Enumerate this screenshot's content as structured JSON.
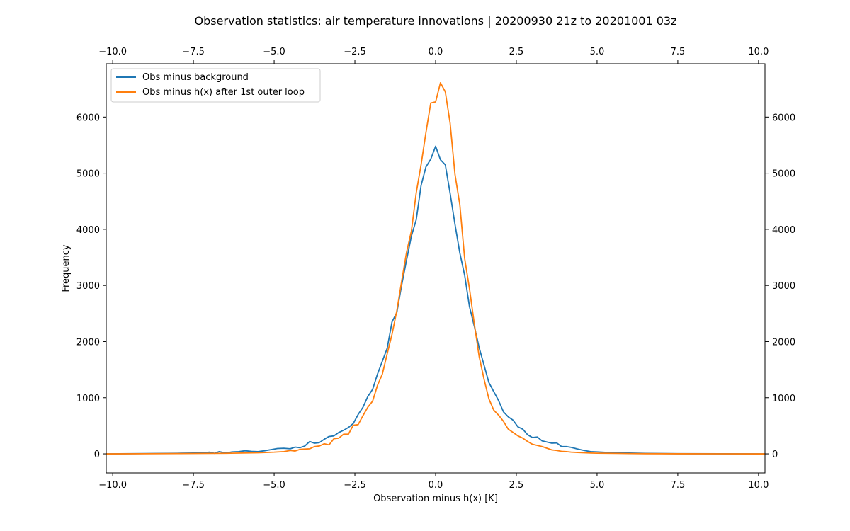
{
  "chart_data": {
    "type": "line",
    "title": "Observation statistics: air temperature innovations | 20200930 21z to 20201001 03z",
    "xlabel": "Observation minus h(x) [K]",
    "ylabel": "Frequency",
    "xlim": [
      -10.2,
      10.2
    ],
    "ylim": [
      -340,
      6950
    ],
    "x_ticks": [
      -10.0,
      -7.5,
      -5.0,
      -2.5,
      0.0,
      2.5,
      5.0,
      7.5,
      10.0
    ],
    "x_tick_labels": [
      "−10.0",
      "−7.5",
      "−5.0",
      "−2.5",
      "0.0",
      "2.5",
      "5.0",
      "7.5",
      "10.0"
    ],
    "y_ticks": [
      0,
      1000,
      2000,
      3000,
      4000,
      5000,
      6000
    ],
    "y_tick_labels": [
      "0",
      "1000",
      "2000",
      "3000",
      "4000",
      "5000",
      "6000"
    ],
    "top_axis": true,
    "right_axis": true,
    "grid": false,
    "legend_position": "upper-left",
    "series": [
      {
        "name": "Obs minus background",
        "color": "#1f77b4",
        "x": [
          -10.2,
          -9.0,
          -8.0,
          -7.5,
          -7.2,
          -7.0,
          -6.85,
          -6.7,
          -6.5,
          -6.3,
          -6.1,
          -5.9,
          -5.7,
          -5.5,
          -5.3,
          -5.1,
          -4.9,
          -4.7,
          -4.5,
          -4.35,
          -4.2,
          -4.05,
          -3.9,
          -3.75,
          -3.6,
          -3.45,
          -3.3,
          -3.15,
          -3.0,
          -2.85,
          -2.7,
          -2.55,
          -2.4,
          -2.25,
          -2.1,
          -1.95,
          -1.8,
          -1.65,
          -1.5,
          -1.35,
          -1.2,
          -1.05,
          -0.9,
          -0.75,
          -0.6,
          -0.45,
          -0.3,
          -0.15,
          0.0,
          0.15,
          0.3,
          0.45,
          0.6,
          0.75,
          0.9,
          1.05,
          1.2,
          1.35,
          1.5,
          1.65,
          1.8,
          1.95,
          2.1,
          2.25,
          2.4,
          2.55,
          2.7,
          2.85,
          3.0,
          3.15,
          3.3,
          3.45,
          3.6,
          3.75,
          3.9,
          4.05,
          4.2,
          4.4,
          4.6,
          4.8,
          5.0,
          5.3,
          5.6,
          6.0,
          6.5,
          7.5,
          10.2
        ],
        "y": [
          0,
          5,
          10,
          15,
          20,
          30,
          10,
          40,
          15,
          35,
          40,
          55,
          45,
          40,
          55,
          75,
          95,
          100,
          90,
          120,
          110,
          140,
          220,
          190,
          200,
          260,
          310,
          320,
          380,
          420,
          470,
          540,
          700,
          830,
          1020,
          1150,
          1420,
          1650,
          1880,
          2350,
          2520,
          3010,
          3450,
          3880,
          4170,
          4780,
          5110,
          5250,
          5480,
          5240,
          5150,
          4640,
          4090,
          3580,
          3180,
          2620,
          2270,
          1890,
          1580,
          1270,
          1110,
          950,
          750,
          660,
          600,
          480,
          440,
          340,
          290,
          300,
          230,
          210,
          190,
          195,
          130,
          130,
          115,
          85,
          60,
          40,
          35,
          25,
          20,
          15,
          8,
          3,
          0
        ]
      },
      {
        "name": "Obs minus h(x) after 1st outer loop",
        "color": "#ff7f0e",
        "x": [
          -10.2,
          -9.0,
          -8.0,
          -7.0,
          -6.5,
          -6.0,
          -5.5,
          -5.0,
          -4.7,
          -4.5,
          -4.35,
          -4.2,
          -4.05,
          -3.9,
          -3.75,
          -3.6,
          -3.45,
          -3.3,
          -3.15,
          -3.0,
          -2.85,
          -2.7,
          -2.55,
          -2.4,
          -2.25,
          -2.1,
          -1.95,
          -1.8,
          -1.65,
          -1.5,
          -1.35,
          -1.2,
          -1.05,
          -0.9,
          -0.75,
          -0.6,
          -0.45,
          -0.3,
          -0.15,
          0.0,
          0.15,
          0.3,
          0.45,
          0.6,
          0.75,
          0.9,
          1.05,
          1.2,
          1.35,
          1.5,
          1.65,
          1.8,
          1.95,
          2.1,
          2.25,
          2.4,
          2.55,
          2.7,
          2.85,
          3.0,
          3.15,
          3.3,
          3.45,
          3.6,
          3.75,
          3.9,
          4.05,
          4.2,
          4.4,
          4.6,
          4.8,
          5.0,
          5.3,
          5.6,
          6.0,
          6.5,
          7.5,
          10.2
        ],
        "y": [
          0,
          2,
          5,
          8,
          10,
          15,
          20,
          30,
          40,
          60,
          50,
          80,
          85,
          90,
          130,
          140,
          180,
          160,
          270,
          280,
          350,
          350,
          510,
          520,
          680,
          830,
          940,
          1220,
          1420,
          1780,
          2130,
          2550,
          3080,
          3590,
          3970,
          4650,
          5150,
          5720,
          6250,
          6270,
          6610,
          6450,
          5890,
          4980,
          4440,
          3480,
          2940,
          2310,
          1730,
          1330,
          980,
          780,
          690,
          580,
          440,
          380,
          320,
          280,
          220,
          170,
          150,
          130,
          100,
          70,
          60,
          45,
          40,
          30,
          25,
          20,
          15,
          12,
          10,
          8,
          5,
          3,
          1,
          0
        ]
      }
    ]
  }
}
